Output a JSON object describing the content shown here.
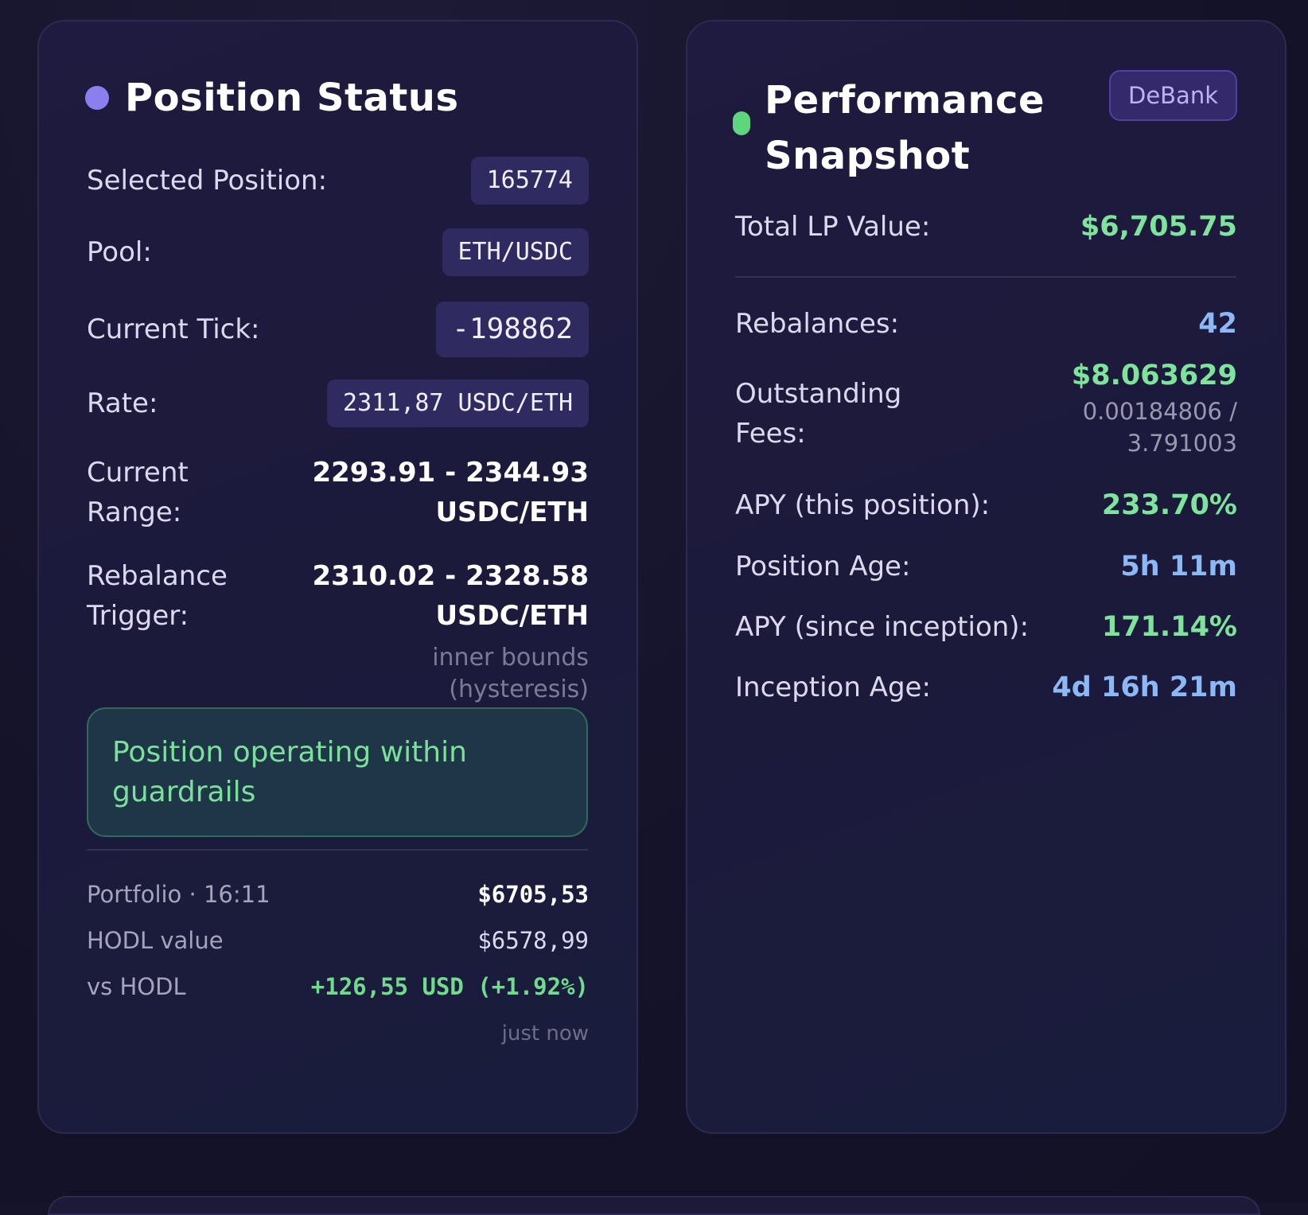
{
  "position_status": {
    "title": "Position Status",
    "dot_color": "#8b7ff0",
    "rows": {
      "selected_position": {
        "label": "Selected Position:",
        "value": "165774"
      },
      "pool": {
        "label": "Pool:",
        "value": "ETH/USDC"
      },
      "current_tick": {
        "label": "Current Tick:",
        "value": "-198862"
      },
      "rate": {
        "label": "Rate:",
        "value": "2311,87 USDC/ETH"
      },
      "current_range": {
        "label_line1": "Current",
        "label_line2": "Range:",
        "value_line1": "2293.91 - 2344.93",
        "value_line2": "USDC/ETH"
      },
      "rebalance_trigger": {
        "label_line1": "Rebalance",
        "label_line2": "Trigger:",
        "value_line1": "2310.02 - 2328.58",
        "value_line2": "USDC/ETH",
        "note_line1": "inner bounds",
        "note_line2": "(hysteresis)"
      }
    },
    "status_message": "Position operating within guardrails",
    "footer": {
      "portfolio_label": "Portfolio · 16:11",
      "portfolio_value": "$6705,53",
      "hodl_label": "HODL value",
      "hodl_value": "$6578,99",
      "vs_hodl_label": "vs HODL",
      "vs_hodl_value": "+126,55 USD (+1.92%)",
      "updated": "just now"
    }
  },
  "performance_snapshot": {
    "title_line1": "Performance",
    "title_line2": "Snapshot",
    "dot_color": "#5fd67e",
    "badge": "DeBank",
    "total_lp_label": "Total LP Value:",
    "total_lp_value": "$6,705.75",
    "rebalances_label": "Rebalances:",
    "rebalances_value": "42",
    "fees_label_line1": "Outstanding",
    "fees_label_line2": "Fees:",
    "fees_value": "$8.063629",
    "fees_sub_line1": "0.00184806 /",
    "fees_sub_line2": "3.791003",
    "apy_position_label": "APY (this position):",
    "apy_position_value": "233.70%",
    "position_age_label": "Position Age:",
    "position_age_value": "5h 11m",
    "apy_inception_label": "APY (since inception):",
    "apy_inception_value": "171.14%",
    "inception_age_label": "Inception Age:",
    "inception_age_value": "4d 16h 21m"
  }
}
